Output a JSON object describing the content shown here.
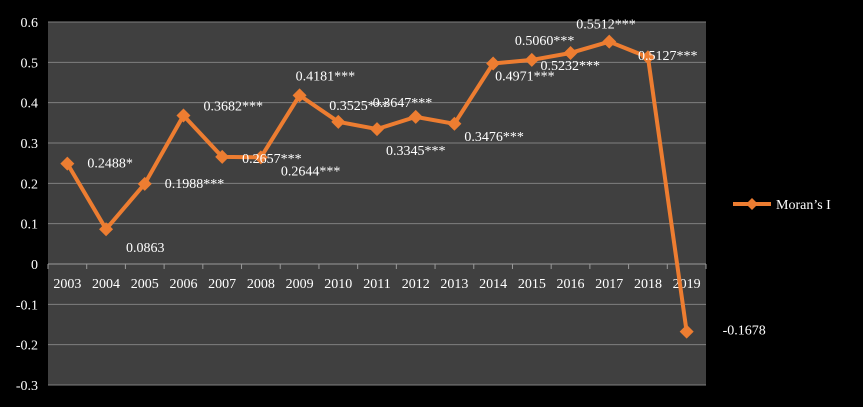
{
  "chart_data": {
    "type": "line",
    "categories": [
      "2003",
      "2004",
      "2005",
      "2006",
      "2007",
      "2008",
      "2009",
      "2010",
      "2011",
      "2012",
      "2013",
      "2014",
      "2015",
      "2016",
      "2017",
      "2018",
      "2019"
    ],
    "series": [
      {
        "name": "Moran’s I",
        "values": [
          0.2488,
          0.0863,
          0.1988,
          0.3682,
          0.2657,
          0.2644,
          0.4181,
          0.3525,
          0.3345,
          0.3647,
          0.3476,
          0.4971,
          0.506,
          0.5232,
          0.5512,
          0.5127,
          -0.1678
        ],
        "labels": [
          "0.2488*",
          "0.0863",
          "0.1988***",
          "0.3682***",
          "0.2657***",
          "0.2644***",
          "0.4181***",
          "0.3525***",
          "0.3345***",
          "0.3647***",
          "0.3476***",
          "0.4971***",
          "0.5060***",
          "0.5232***",
          "0.5512***",
          "0.5127***",
          "-0.1678"
        ],
        "color": "#ed7d31"
      }
    ],
    "yticks": [
      "0.6",
      "0.5",
      "0.4",
      "0.3",
      "0.2",
      "0.1",
      "0",
      "-0.1",
      "-0.2",
      "-0.3"
    ],
    "ylim": [
      -0.3,
      0.6
    ],
    "grid": true,
    "legend": "right",
    "colors": {
      "plot_bg": "#404040",
      "page_bg": "#000000",
      "grid": "#7f7f7f",
      "text": "#ffffff"
    }
  }
}
